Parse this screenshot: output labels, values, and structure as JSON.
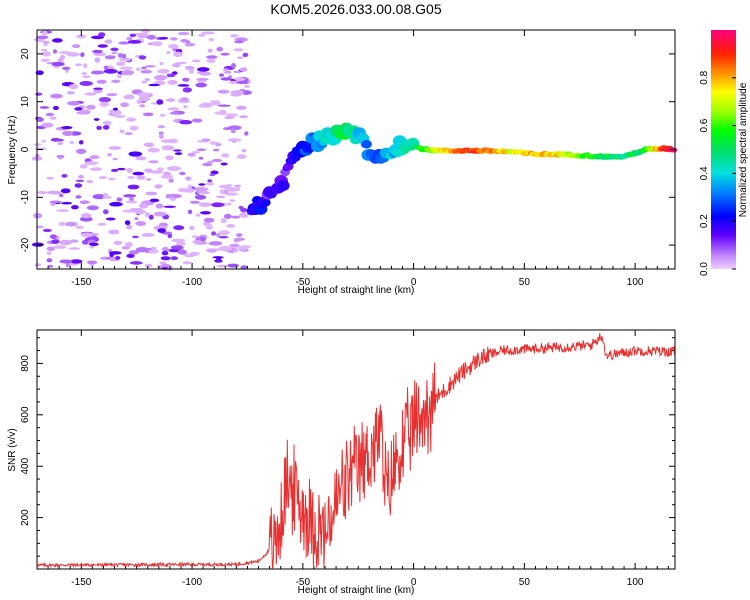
{
  "page": {
    "title": "KOM5.2026.033.00.08.G05"
  },
  "chart_data": [
    {
      "type": "heatmap",
      "name": "spectrogram",
      "title": "KOM5.2026.033.00.08.G05",
      "xlabel": "Height of straight line (km)",
      "ylabel": "Frequency (Hz)",
      "xlim": [
        -170,
        118
      ],
      "ylim": [
        -25,
        25
      ],
      "xticks": [
        -150,
        -100,
        -50,
        0,
        50,
        100
      ],
      "yticks": [
        -20,
        -10,
        0,
        10,
        20
      ],
      "track": {
        "description_points": [
          {
            "x": -73,
            "y": -12.5,
            "amp": 0.22
          },
          {
            "x": -65,
            "y": -10,
            "amp": 0.15
          },
          {
            "x": -58,
            "y": -6,
            "amp": 0.15
          },
          {
            "x": -55,
            "y": -2,
            "amp": 0.2
          },
          {
            "x": -50,
            "y": 0.5,
            "amp": 0.25
          },
          {
            "x": -45,
            "y": 1.5,
            "amp": 0.3
          },
          {
            "x": -38,
            "y": 3,
            "amp": 0.4
          },
          {
            "x": -32,
            "y": 4,
            "amp": 0.5
          },
          {
            "x": -27,
            "y": 3.5,
            "amp": 0.45
          },
          {
            "x": -22,
            "y": 1,
            "amp": 0.35
          },
          {
            "x": -18,
            "y": -2,
            "amp": 0.25
          },
          {
            "x": -14,
            "y": -1.5,
            "amp": 0.3
          },
          {
            "x": -8,
            "y": 0.5,
            "amp": 0.4
          },
          {
            "x": -2,
            "y": 1,
            "amp": 0.45
          },
          {
            "x": 5,
            "y": 0,
            "amp": 0.6
          },
          {
            "x": 15,
            "y": -0.3,
            "amp": 0.75
          },
          {
            "x": 25,
            "y": -0.2,
            "amp": 0.9
          },
          {
            "x": 35,
            "y": -0.3,
            "amp": 0.85
          },
          {
            "x": 45,
            "y": -0.5,
            "amp": 0.7
          },
          {
            "x": 55,
            "y": -1,
            "amp": 0.8
          },
          {
            "x": 65,
            "y": -1,
            "amp": 0.75
          },
          {
            "x": 75,
            "y": -1.2,
            "amp": 0.6
          },
          {
            "x": 85,
            "y": -1.5,
            "amp": 0.55
          },
          {
            "x": 95,
            "y": -1.5,
            "amp": 0.45
          },
          {
            "x": 105,
            "y": 0,
            "amp": 0.55
          },
          {
            "x": 113,
            "y": 0.2,
            "amp": 0.9
          },
          {
            "x": 118,
            "y": 0,
            "amp": 0.95
          }
        ]
      },
      "noise_region_xmax": -75,
      "colorbar": {
        "label": "Normalized spectral amplitude",
        "ticks": [
          "0.0",
          "0.2",
          "0.4",
          "0.6",
          "0.8"
        ],
        "tick_values": [
          0.0,
          0.2,
          0.4,
          0.6,
          0.8
        ],
        "range": [
          0,
          1
        ]
      }
    },
    {
      "type": "line",
      "name": "snr",
      "xlabel": "Height of straight line (km)",
      "ylabel": "SNR (v/v)",
      "xlim": [
        -170,
        118
      ],
      "ylim": [
        0,
        930
      ],
      "xticks": [
        -150,
        -100,
        -50,
        0,
        50,
        100
      ],
      "yticks": [
        200,
        400,
        600,
        800
      ],
      "color": "#e83030",
      "anchor_points": [
        {
          "x": -170,
          "y": 15
        },
        {
          "x": -80,
          "y": 18
        },
        {
          "x": -70,
          "y": 30
        },
        {
          "x": -62,
          "y": 100
        },
        {
          "x": -57,
          "y": 350
        },
        {
          "x": -50,
          "y": 230
        },
        {
          "x": -45,
          "y": 180
        },
        {
          "x": -40,
          "y": 120
        },
        {
          "x": -33,
          "y": 300
        },
        {
          "x": -28,
          "y": 360
        },
        {
          "x": -22,
          "y": 420
        },
        {
          "x": -15,
          "y": 520
        },
        {
          "x": -12,
          "y": 280
        },
        {
          "x": -8,
          "y": 420
        },
        {
          "x": 0,
          "y": 560
        },
        {
          "x": 10,
          "y": 660
        },
        {
          "x": 20,
          "y": 750
        },
        {
          "x": 30,
          "y": 820
        },
        {
          "x": 40,
          "y": 850
        },
        {
          "x": 60,
          "y": 860
        },
        {
          "x": 80,
          "y": 870
        },
        {
          "x": 85,
          "y": 910
        },
        {
          "x": 87,
          "y": 830
        },
        {
          "x": 100,
          "y": 850
        },
        {
          "x": 118,
          "y": 845
        }
      ]
    }
  ]
}
